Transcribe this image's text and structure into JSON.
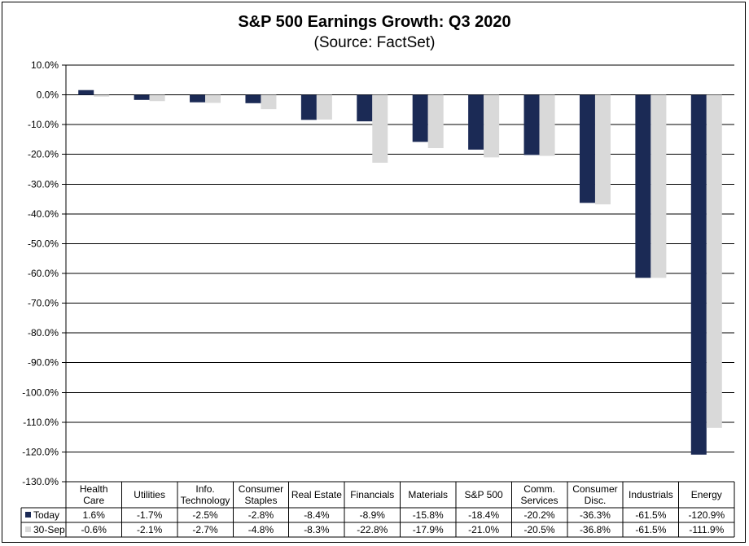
{
  "chart_data": {
    "type": "bar",
    "title": "S&P 500 Earnings Growth:  Q3 2020",
    "subtitle": "(Source: FactSet)",
    "categories": [
      [
        "Health",
        "Care"
      ],
      [
        "Utilities"
      ],
      [
        "Info.",
        "Technology"
      ],
      [
        "Consumer",
        "Staples"
      ],
      [
        "Real Estate"
      ],
      [
        "Financials"
      ],
      [
        "Materials"
      ],
      [
        "S&P 500"
      ],
      [
        "Comm.",
        "Services"
      ],
      [
        "Consumer",
        "Disc."
      ],
      [
        "Industrials"
      ],
      [
        "Energy"
      ]
    ],
    "series": [
      {
        "name": "Today",
        "color": "#1B2A55",
        "values": [
          1.6,
          -1.7,
          -2.5,
          -2.8,
          -8.4,
          -8.9,
          -15.8,
          -18.4,
          -20.2,
          -36.3,
          -61.5,
          -120.9
        ],
        "labels": [
          "1.6%",
          "-1.7%",
          "-2.5%",
          "-2.8%",
          "-8.4%",
          "-8.9%",
          "-15.8%",
          "-18.4%",
          "-20.2%",
          "-36.3%",
          "-61.5%",
          "-120.9%"
        ]
      },
      {
        "name": "30-Sep",
        "color": "#D9D9D9",
        "values": [
          -0.6,
          -2.1,
          -2.7,
          -4.8,
          -8.3,
          -22.8,
          -17.9,
          -21.0,
          -20.5,
          -36.8,
          -61.5,
          -111.9
        ],
        "labels": [
          "-0.6%",
          "-2.1%",
          "-2.7%",
          "-4.8%",
          "-8.3%",
          "-22.8%",
          "-17.9%",
          "-21.0%",
          "-20.5%",
          "-36.8%",
          "-61.5%",
          "-111.9%"
        ]
      }
    ],
    "xlabel": "",
    "ylabel": "",
    "ylim": [
      -130,
      10
    ],
    "ytick_step": 10,
    "ytick_labels": [
      "10.0%",
      "0.0%",
      "-10.0%",
      "-20.0%",
      "-30.0%",
      "-40.0%",
      "-50.0%",
      "-60.0%",
      "-70.0%",
      "-80.0%",
      "-90.0%",
      "-100.0%",
      "-110.0%",
      "-120.0%",
      "-130.0%"
    ],
    "grid": true,
    "legend": "data-table",
    "gridline_color": "#000000"
  }
}
